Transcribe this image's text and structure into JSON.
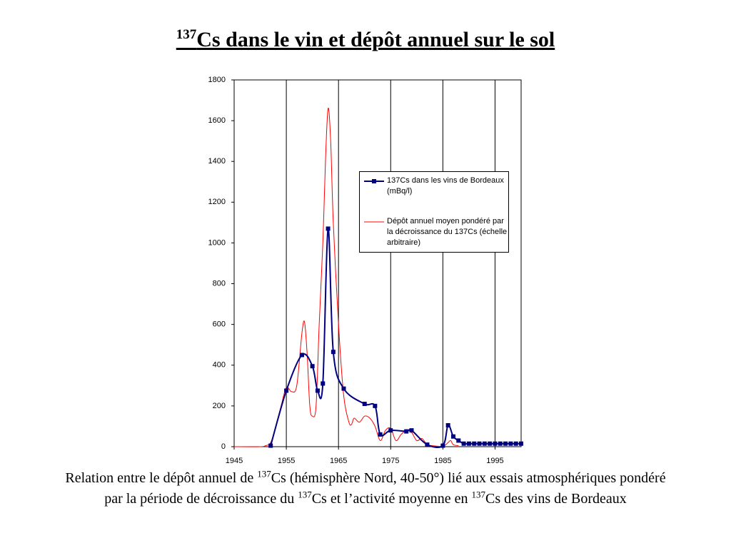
{
  "chart_data": {
    "type": "line",
    "title": [
      {
        "text": "137",
        "superscript": true
      },
      {
        "text": "Cs dans le vin et dépôt annuel sur le sol",
        "superscript": false
      }
    ],
    "caption": [
      {
        "text": "Relation entre le dépôt annuel de ",
        "superscript": false
      },
      {
        "text": "137",
        "superscript": true
      },
      {
        "text": "Cs (hémisphère Nord, 40-50°) lié aux essais atmosphériques pondéré par la période de décroissance du ",
        "superscript": false
      },
      {
        "text": "137",
        "superscript": true
      },
      {
        "text": "Cs et l’activité moyenne en ",
        "superscript": false
      },
      {
        "text": "137",
        "superscript": true
      },
      {
        "text": "Cs des vins de Bordeaux",
        "superscript": false
      }
    ],
    "xlim": [
      1945,
      2000
    ],
    "xticks": [
      1945,
      1955,
      1965,
      1975,
      1985,
      1995
    ],
    "ylim": [
      0,
      1800
    ],
    "yticks": [
      0,
      200,
      400,
      600,
      800,
      1000,
      1200,
      1400,
      1600,
      1800
    ],
    "grid": "x",
    "legend": "upper right",
    "series": [
      {
        "name": "137Cs dans les vins de Bordeaux (mBq/l)",
        "color": "#000080",
        "marker": "square",
        "x": [
          1952,
          1955,
          1958,
          1960,
          1961,
          1962,
          1963,
          1964,
          1966,
          1970,
          1972,
          1973,
          1975,
          1978,
          1979,
          1982,
          1985,
          1986,
          1987,
          1988,
          1989,
          1990,
          1991,
          1992,
          1993,
          1994,
          1995,
          1996,
          1997,
          1998,
          1999,
          2000
        ],
        "values": [
          5,
          275,
          450,
          395,
          275,
          310,
          1070,
          465,
          285,
          210,
          200,
          60,
          80,
          75,
          80,
          10,
          5,
          105,
          50,
          30,
          15,
          15,
          15,
          15,
          15,
          15,
          15,
          15,
          15,
          15,
          15,
          15
        ]
      },
      {
        "name": "Dépôt annuel moyen pondéré par la décroissance du 137Cs (échelle arbitraire)",
        "color": "#ff0000",
        "marker": "none",
        "x": [
          1945,
          1950,
          1951,
          1952,
          1953,
          1954,
          1955,
          1956,
          1957,
          1958,
          1958.5,
          1959,
          1959.5,
          1960,
          1960.7,
          1961.3,
          1962,
          1962.5,
          1963,
          1963.5,
          1964,
          1965,
          1966,
          1967,
          1967.5,
          1968,
          1969,
          1970,
          1971,
          1972,
          1973,
          1974,
          1975,
          1976,
          1977,
          1978,
          1979,
          1980,
          1981,
          1982,
          1983,
          1985,
          1986,
          1986.5,
          1987,
          1988
        ],
        "values": [
          0,
          0,
          5,
          20,
          100,
          200,
          290,
          270,
          300,
          560,
          610,
          450,
          200,
          150,
          200,
          600,
          1000,
          1400,
          1660,
          1500,
          1100,
          600,
          250,
          120,
          110,
          140,
          120,
          150,
          140,
          100,
          30,
          80,
          90,
          30,
          60,
          80,
          70,
          30,
          40,
          10,
          5,
          2,
          20,
          30,
          10,
          5
        ]
      }
    ]
  }
}
